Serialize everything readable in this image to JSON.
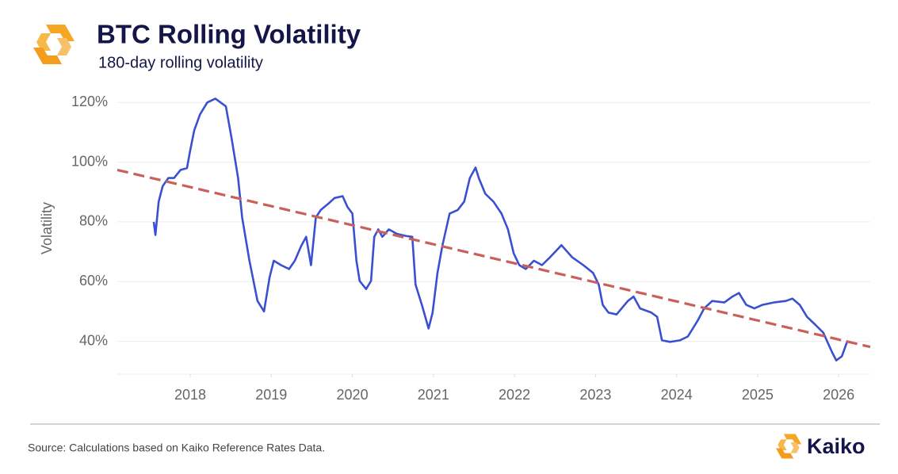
{
  "chart_data": {
    "type": "line",
    "title": "BTC Rolling Volatility",
    "subtitle": "180-day rolling volatility",
    "y_label": "Volatility",
    "source": "Source: Calculations based on Kaiko Reference Rates Data.",
    "brand": "Kaiko",
    "grid": true,
    "xlim": [
      2017.1,
      2026.39
    ],
    "xticks": [
      2018,
      2019,
      2020,
      2021,
      2022,
      2023,
      2024,
      2025,
      2026
    ],
    "ylim": [
      29,
      123
    ],
    "yticks": [
      {
        "value": 40,
        "label": "40%"
      },
      {
        "value": 60,
        "label": "60%"
      },
      {
        "value": 80,
        "label": "80%"
      },
      {
        "value": 100,
        "label": "100%"
      },
      {
        "value": 120,
        "label": "120%"
      }
    ],
    "series": [
      {
        "color": "#3a50d0",
        "x": [
          2017.55,
          2017.57,
          2017.61,
          2017.66,
          2017.73,
          2017.8,
          2017.88,
          2017.96,
          2018.0,
          2018.05,
          2018.12,
          2018.21,
          2018.31,
          2018.44,
          2018.51,
          2018.59,
          2018.64,
          2018.73,
          2018.83,
          2018.91,
          2018.98,
          2019.03,
          2019.12,
          2019.22,
          2019.29,
          2019.37,
          2019.43,
          2019.49,
          2019.55,
          2019.61,
          2019.7,
          2019.78,
          2019.88,
          2019.94,
          2020.0,
          2020.05,
          2020.09,
          2020.17,
          2020.23,
          2020.27,
          2020.32,
          2020.37,
          2020.45,
          2020.55,
          2020.66,
          2020.74,
          2020.78,
          2020.86,
          2020.94,
          2020.99,
          2021.05,
          2021.11,
          2021.2,
          2021.3,
          2021.38,
          2021.45,
          2021.52,
          2021.56,
          2021.64,
          2021.74,
          2021.84,
          2021.92,
          2021.99,
          2022.06,
          2022.14,
          2022.24,
          2022.34,
          2022.44,
          2022.58,
          2022.71,
          2022.85,
          2022.97,
          2023.04,
          2023.09,
          2023.16,
          2023.26,
          2023.4,
          2023.47,
          2023.55,
          2023.69,
          2023.76,
          2023.82,
          2023.92,
          2024.04,
          2024.14,
          2024.26,
          2024.34,
          2024.44,
          2024.59,
          2024.69,
          2024.77,
          2024.86,
          2024.96,
          2025.06,
          2025.2,
          2025.35,
          2025.43,
          2025.52,
          2025.61,
          2025.71,
          2025.81,
          2025.92,
          2025.97,
          2026.04,
          2026.11
        ],
        "values": [
          80,
          75.6,
          86.8,
          92,
          94.7,
          94.7,
          97.4,
          98,
          104,
          110.7,
          116,
          120,
          121.3,
          118.7,
          108,
          94.7,
          81.5,
          67,
          53.5,
          50,
          61.5,
          67,
          65.5,
          64.2,
          67,
          72,
          75,
          65.5,
          81.5,
          84,
          86,
          88,
          88.6,
          85,
          82.8,
          67,
          60.2,
          57.5,
          60.2,
          75,
          77.5,
          75,
          77.5,
          76,
          75.3,
          75,
          59,
          52,
          44.3,
          49.6,
          62.8,
          72,
          82.8,
          84,
          86.8,
          94.7,
          98.2,
          94.7,
          89.4,
          86.8,
          82.8,
          77.5,
          69.5,
          65.5,
          64.2,
          67,
          65.5,
          68.2,
          72.2,
          68.2,
          65.5,
          62.9,
          59,
          52.2,
          49.6,
          49,
          53.5,
          55,
          51,
          49.6,
          48.2,
          40.3,
          39.8,
          40.3,
          41.6,
          46.9,
          51,
          53.5,
          53,
          55,
          56.2,
          52.2,
          51,
          52.2,
          53,
          53.5,
          54.3,
          52.2,
          48.2,
          45.6,
          42.9,
          36.3,
          33.6,
          35,
          40.3
        ]
      }
    ],
    "trend": {
      "color": "#c9605c",
      "x": [
        2017.1,
        2026.39
      ],
      "values": [
        97.4,
        38.1
      ]
    }
  }
}
